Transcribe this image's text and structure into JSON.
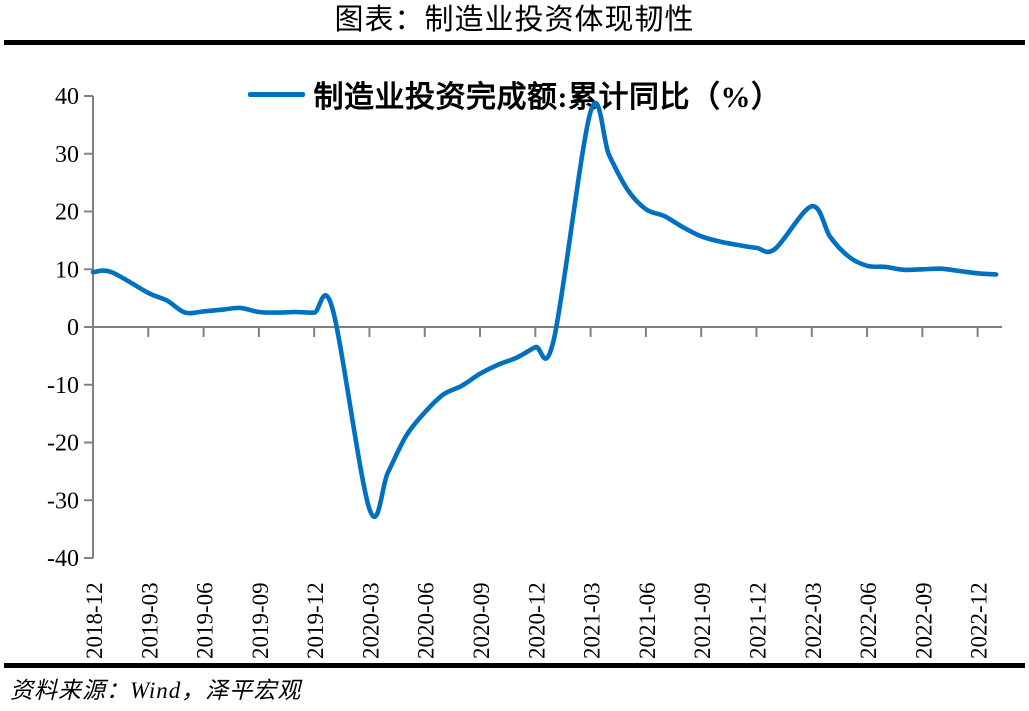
{
  "title": "图表：制造业投资体现韧性",
  "legend": {
    "label": "制造业投资完成额:累计同比（%）"
  },
  "source": "资料来源：Wind，泽平宏观",
  "colors": {
    "line": "#0070C0",
    "axis": "#808080",
    "text": "#000000",
    "rule": "#000000",
    "background": "#FFFFFF"
  },
  "chart_data": {
    "type": "line",
    "title": "图表：制造业投资体现韧性",
    "xlabel": "",
    "ylabel": "",
    "ylim": [
      -40,
      40
    ],
    "y_ticks": [
      40,
      30,
      20,
      10,
      0,
      -10,
      -20,
      -30,
      -40
    ],
    "grid": false,
    "legend_position": "top",
    "zero_axis": true,
    "x_tick_labels": [
      "2018-12",
      "2019-03",
      "2019-06",
      "2019-09",
      "2019-12",
      "2020-03",
      "2020-06",
      "2020-09",
      "2020-12",
      "2021-03",
      "2021-06",
      "2021-09",
      "2021-12",
      "2022-03",
      "2022-06",
      "2022-09",
      "2022-12"
    ],
    "series": [
      {
        "name": "制造业投资完成额:累计同比（%）",
        "color": "#0070C0",
        "smooth": true,
        "points": [
          [
            "2018-12",
            9.5
          ],
          [
            "2019-02",
            5.9
          ],
          [
            "2019-03",
            4.6
          ],
          [
            "2019-04",
            2.5
          ],
          [
            "2019-05",
            2.7
          ],
          [
            "2019-06",
            3.0
          ],
          [
            "2019-07",
            3.3
          ],
          [
            "2019-08",
            2.6
          ],
          [
            "2019-09",
            2.5
          ],
          [
            "2019-10",
            2.6
          ],
          [
            "2019-11",
            2.5
          ],
          [
            "2019-12",
            3.1
          ],
          [
            "2020-02",
            -31.5
          ],
          [
            "2020-03",
            -25.2
          ],
          [
            "2020-04",
            -18.8
          ],
          [
            "2020-05",
            -14.8
          ],
          [
            "2020-06",
            -11.7
          ],
          [
            "2020-07",
            -10.2
          ],
          [
            "2020-08",
            -8.1
          ],
          [
            "2020-09",
            -6.5
          ],
          [
            "2020-10",
            -5.3
          ],
          [
            "2020-11",
            -3.5
          ],
          [
            "2020-12",
            -2.2
          ],
          [
            "2021-02",
            37.3
          ],
          [
            "2021-03",
            29.8
          ],
          [
            "2021-04",
            23.8
          ],
          [
            "2021-05",
            20.4
          ],
          [
            "2021-06",
            19.2
          ],
          [
            "2021-07",
            17.3
          ],
          [
            "2021-08",
            15.7
          ],
          [
            "2021-09",
            14.8
          ],
          [
            "2021-10",
            14.2
          ],
          [
            "2021-11",
            13.7
          ],
          [
            "2021-12",
            13.5
          ],
          [
            "2022-02",
            20.9
          ],
          [
            "2022-03",
            15.6
          ],
          [
            "2022-04",
            12.2
          ],
          [
            "2022-05",
            10.6
          ],
          [
            "2022-06",
            10.4
          ],
          [
            "2022-07",
            9.9
          ],
          [
            "2022-08",
            10.0
          ],
          [
            "2022-09",
            10.1
          ],
          [
            "2022-10",
            9.7
          ],
          [
            "2022-11",
            9.3
          ],
          [
            "2022-12",
            9.1
          ]
        ]
      }
    ]
  }
}
